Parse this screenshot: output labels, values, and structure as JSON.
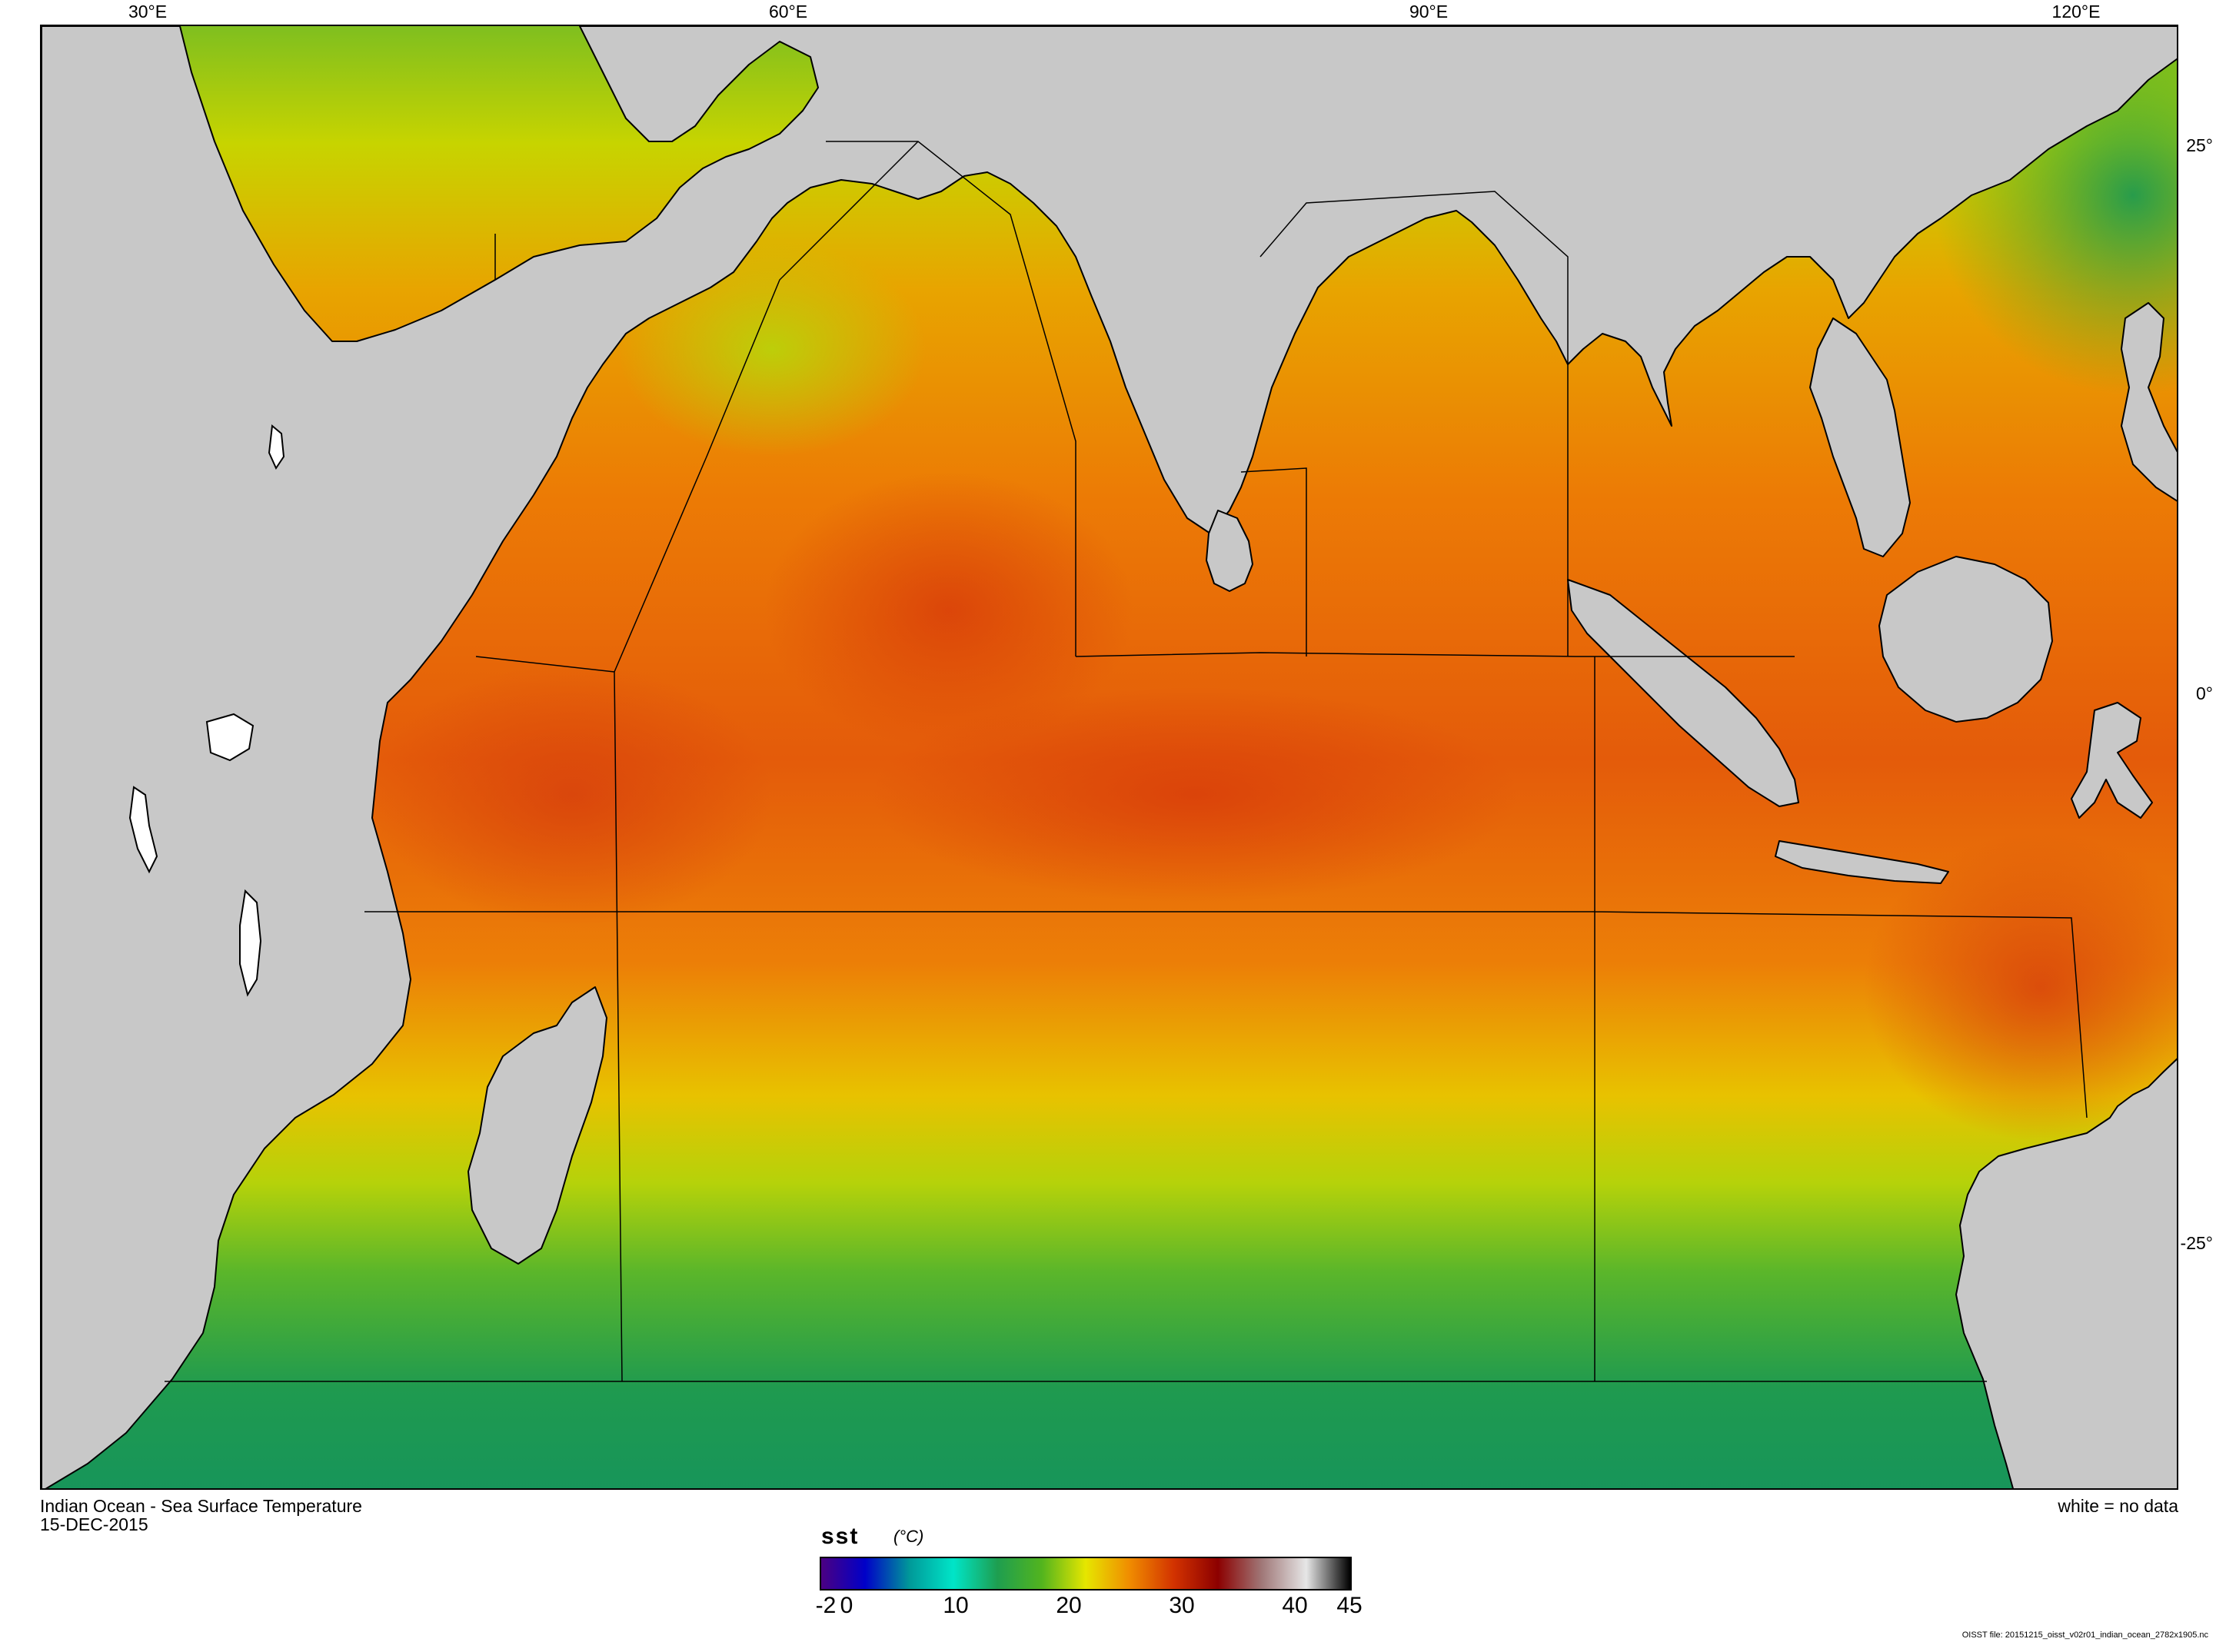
{
  "map": {
    "title": "Indian Ocean - Sea Surface Temperature",
    "date": "15-DEC-2015",
    "no_data_note": "white = no data",
    "file_note": "OISST file: 20151215_oisst_v02r01_indian_ocean_2782x1905.nc",
    "longitude_labels": [
      "30°E",
      "60°E",
      "90°E",
      "120°E"
    ],
    "latitude_labels": [
      "25°",
      "0°",
      "-25°"
    ],
    "land_color": "#c8c8c8",
    "no_data_color": "#ffffff",
    "coastline_color": "#000000"
  },
  "colorbar": {
    "variable": "sst",
    "units": "(°C)",
    "range": [
      -2,
      45
    ],
    "tick_labels": [
      "-2",
      "0",
      "10",
      "20",
      "30",
      "40",
      "45"
    ],
    "colors": [
      "#4b0082",
      "#0000c8",
      "#009999",
      "#00e5c8",
      "#1e9e50",
      "#52b41e",
      "#e6e600",
      "#f08c00",
      "#d23200",
      "#8c0000",
      "#a07878",
      "#e6e6e6",
      "#000000"
    ]
  }
}
